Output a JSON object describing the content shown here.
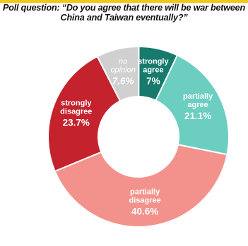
{
  "header": {
    "accent_color": "#f5c518",
    "title_line1": "Poll question: “Do you agree that there will be war between",
    "title_line2": "China and Taiwan eventually?”"
  },
  "chart_data": {
    "type": "pie",
    "variant": "donut",
    "title": "Poll question: “Do you agree that there will be war between China and Taiwan eventually?”",
    "unit": "%",
    "slices": [
      {
        "label_lines": [
          "strongly",
          "agree"
        ],
        "value": 7,
        "value_text": "7%",
        "color": "#167a6c",
        "text_color": "#ffffff",
        "italic": false
      },
      {
        "label_lines": [
          "partially",
          "agree"
        ],
        "value": 21.1,
        "value_text": "21.1%",
        "color": "#6ccdc1",
        "text_color": "#ffffff",
        "italic": false
      },
      {
        "label_lines": [
          "partially",
          "disagree"
        ],
        "value": 40.6,
        "value_text": "40.6%",
        "color": "#f3928c",
        "text_color": "#ffffff",
        "italic": false
      },
      {
        "label_lines": [
          "strongly",
          "disagree"
        ],
        "value": 23.7,
        "value_text": "23.7%",
        "color": "#c4232d",
        "text_color": "#ffffff",
        "italic": false
      },
      {
        "label_lines": [
          "no",
          "opinion"
        ],
        "value": 7.6,
        "value_text": "7.6%",
        "color": "#d0d0d0",
        "text_color": "#ffffff",
        "italic": true
      }
    ]
  }
}
